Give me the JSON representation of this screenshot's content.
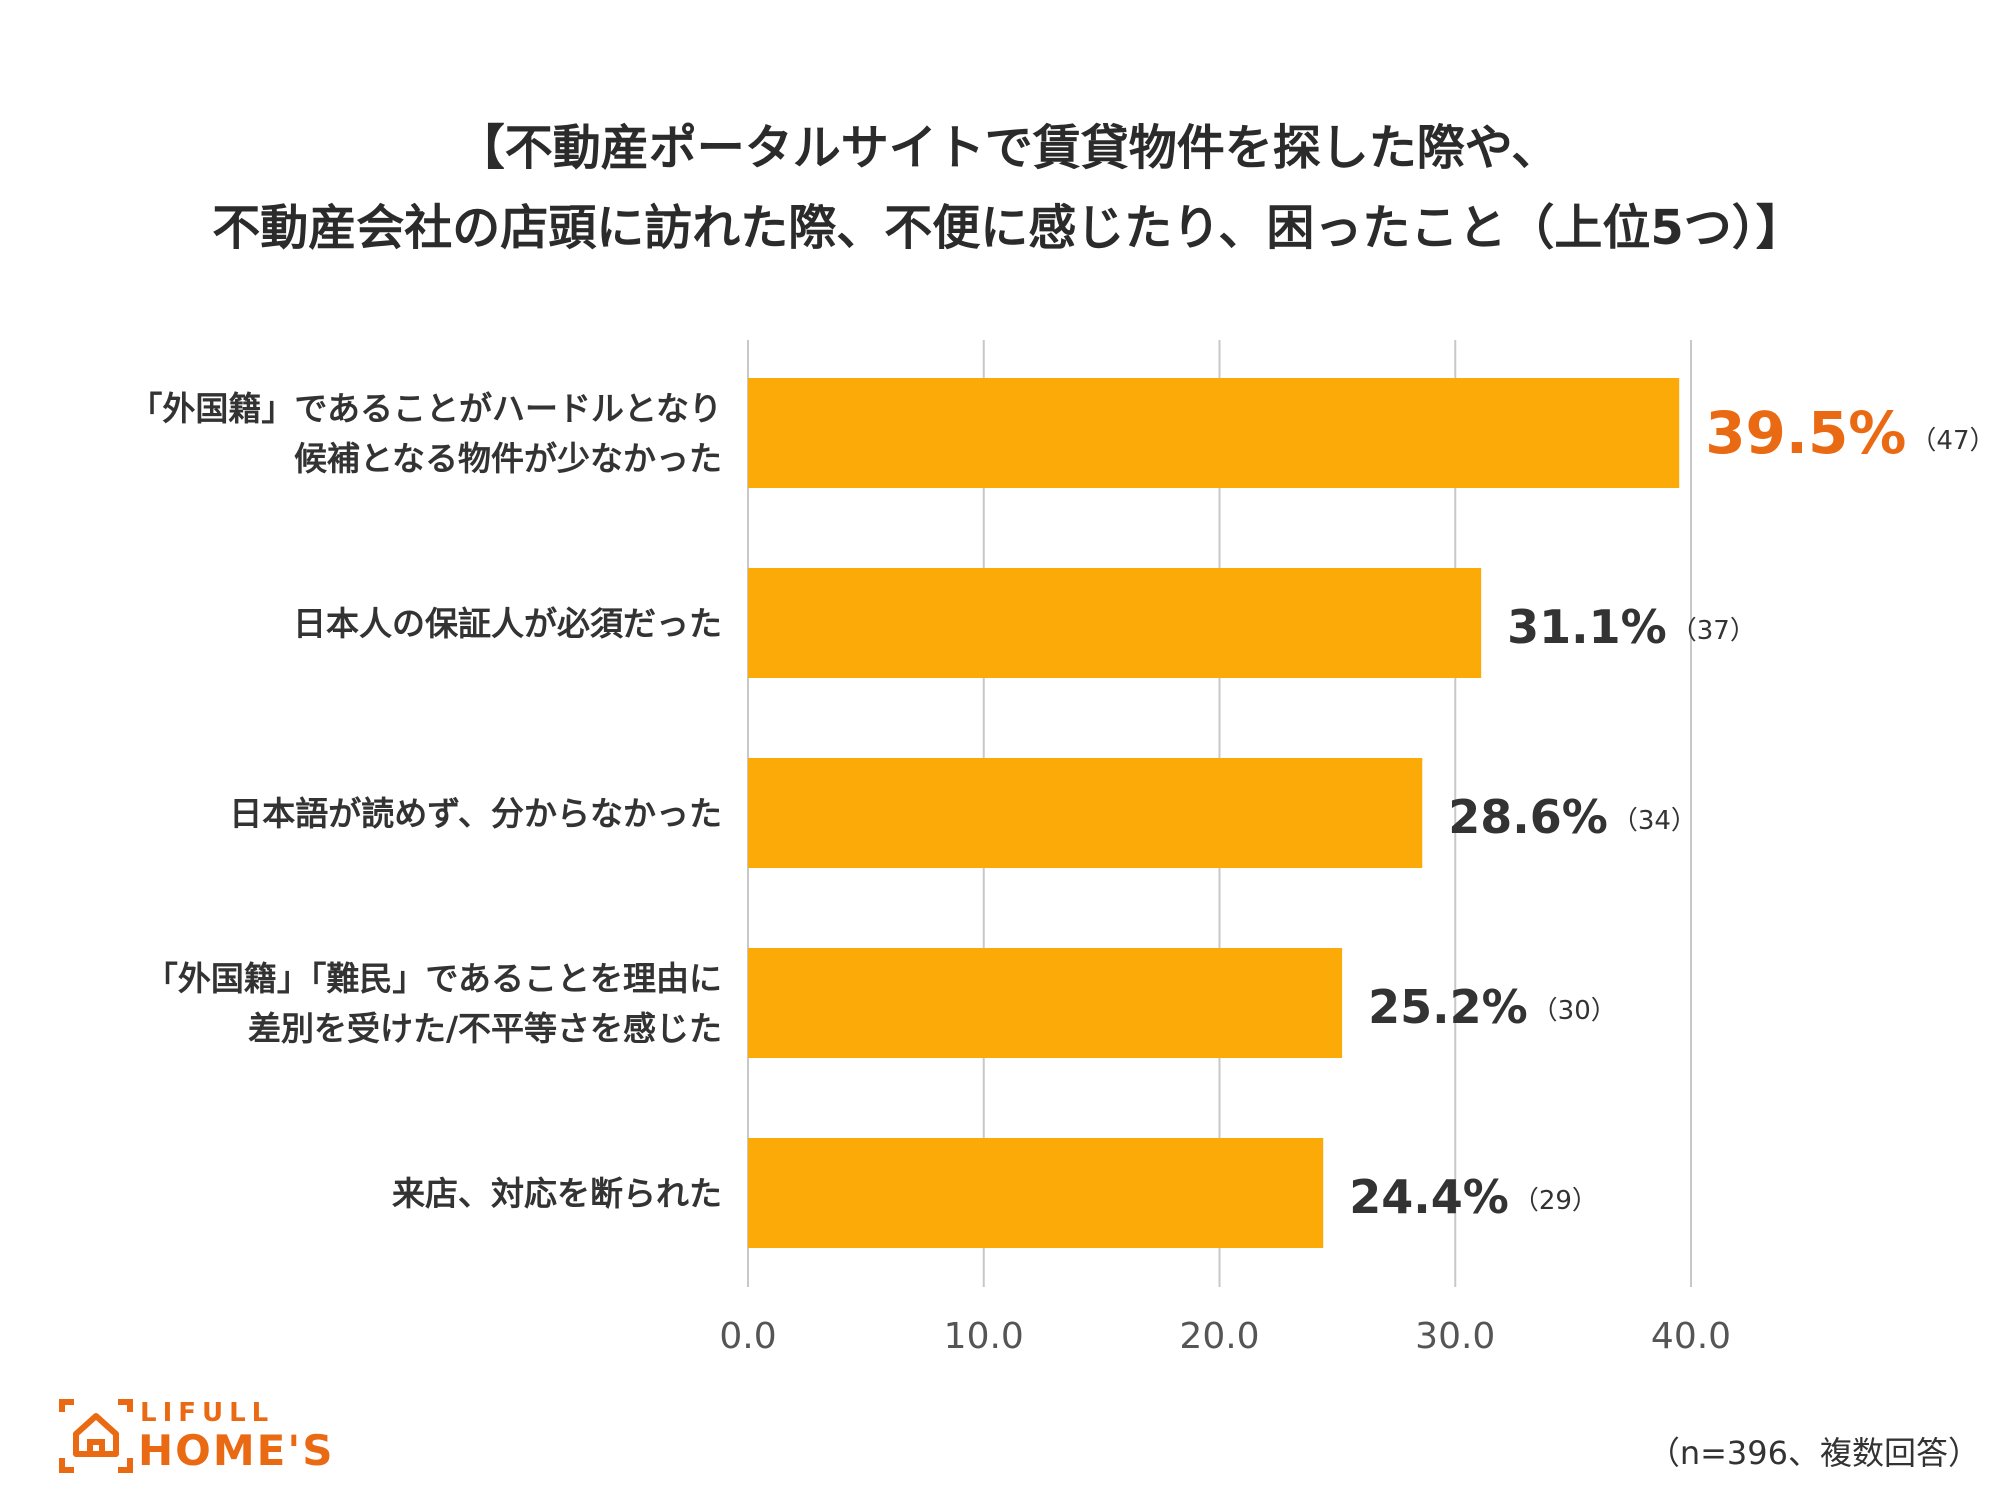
{
  "chart_data": {
    "type": "bar",
    "orientation": "horizontal",
    "title_lines": [
      "【不動産ポータルサイトで賃貸物件を探した際や、",
      "不動産会社の店頭に訪れた際、不便に感じたり、困ったこと（上位5つ）】"
    ],
    "categories": [
      [
        "「外国籍」であることがハードルとなり",
        "候補となる物件が少なかった"
      ],
      [
        "日本人の保証人が必須だった"
      ],
      [
        "日本語が読めず、分からなかった"
      ],
      [
        "「外国籍」「難民」であることを理由に",
        "差別を受けた/不平等さを感じた"
      ],
      [
        "来店、対応を断られた"
      ]
    ],
    "values": [
      39.5,
      31.1,
      28.6,
      25.2,
      24.4
    ],
    "value_labels": [
      "39.5%",
      "31.1%",
      "28.6%",
      "25.2%",
      "24.4%"
    ],
    "count_labels": [
      "（47）",
      "（37）",
      "（34）",
      "（30）",
      "（29）"
    ],
    "highlight_index": 0,
    "xlim": [
      0,
      40
    ],
    "ticks": [
      0,
      10,
      20,
      30,
      40
    ],
    "tick_labels": [
      "0.0",
      "10.0",
      "20.0",
      "30.0",
      "40.0"
    ],
    "grid": true,
    "xlabel": "",
    "ylabel": ""
  },
  "colors": {
    "bar": "#FBAA07",
    "highlight_text": "#EA6A14",
    "text": "#333333",
    "grid": "#C8C8C8",
    "logo": "#EA6A14"
  },
  "note": "（n=396、複数回答）",
  "logo": {
    "top_text": "LIFULL",
    "main_text": "HOME'S",
    "icon": "house-icon"
  }
}
